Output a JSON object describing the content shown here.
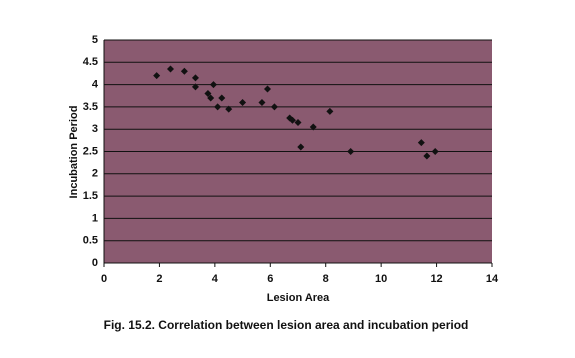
{
  "chart_data": {
    "type": "scatter",
    "x_label": "Lesion Area",
    "y_label": "Incubation Period",
    "caption": "Fig. 15.2. Correlation between lesion area and incubation period",
    "x": [
      1.9,
      2.4,
      2.9,
      3.3,
      3.3,
      3.75,
      3.85,
      3.95,
      4.1,
      4.25,
      4.5,
      5.0,
      5.7,
      5.9,
      6.15,
      6.7,
      6.8,
      7.0,
      7.1,
      7.55,
      8.15,
      8.9,
      11.45,
      11.65,
      11.95
    ],
    "values": [
      4.2,
      4.35,
      4.3,
      4.15,
      3.95,
      3.8,
      3.7,
      4.0,
      3.5,
      3.7,
      3.45,
      3.6,
      3.6,
      3.9,
      3.5,
      3.25,
      3.2,
      3.15,
      2.6,
      3.05,
      3.4,
      2.5,
      2.7,
      2.4,
      2.5
    ],
    "color": "#111111",
    "xlim": [
      0,
      14
    ],
    "xticks": [
      0,
      2,
      4,
      6,
      8,
      10,
      12,
      14
    ],
    "ylim": [
      0,
      5
    ],
    "yticks": [
      0,
      0.5,
      1,
      1.5,
      2,
      2.5,
      3,
      3.5,
      4,
      4.5,
      5
    ],
    "grid": true
  }
}
